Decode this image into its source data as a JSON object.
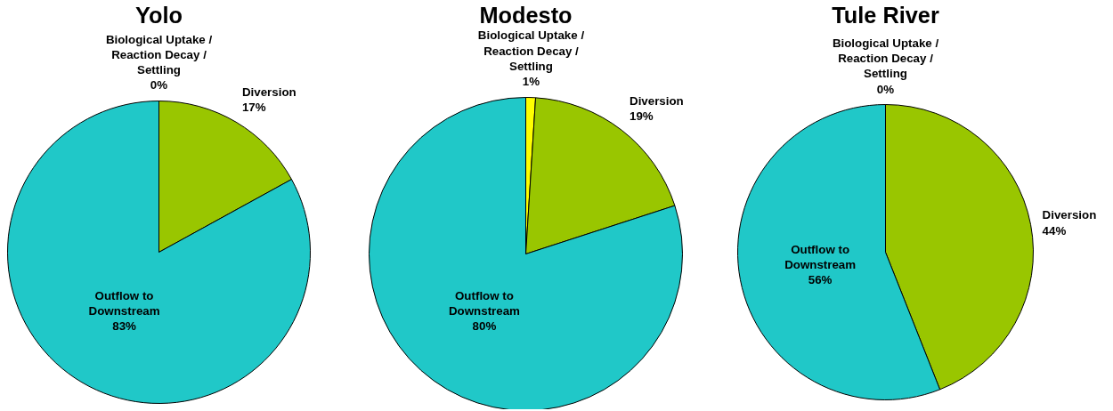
{
  "chart_data": [
    {
      "type": "pie",
      "title": "Yolo",
      "categories": [
        "Biological Uptake /\nReaction Decay /\nSettling",
        "Diversion",
        "Outflow to\nDownstream"
      ],
      "values": [
        0,
        17,
        83
      ],
      "colors": [
        "#ffff00",
        "#99c600",
        "#20c8c8"
      ],
      "value_labels": [
        "0%",
        "17%",
        "83%"
      ]
    },
    {
      "type": "pie",
      "title": "Modesto",
      "categories": [
        "Biological Uptake /\nReaction Decay /\nSettling",
        "Diversion",
        "Outflow to\nDownstream"
      ],
      "values": [
        1,
        19,
        80
      ],
      "colors": [
        "#ffff00",
        "#99c600",
        "#20c8c8"
      ],
      "value_labels": [
        "1%",
        "19%",
        "80%"
      ]
    },
    {
      "type": "pie",
      "title": "Tule River",
      "categories": [
        "Biological Uptake /\nReaction Decay /\nSettling",
        "Diversion",
        "Outflow to\nDownstream"
      ],
      "values": [
        0,
        44,
        56
      ],
      "colors": [
        "#ffff00",
        "#99c600",
        "#20c8c8"
      ],
      "value_labels": [
        "0%",
        "44%",
        "56%"
      ]
    }
  ]
}
